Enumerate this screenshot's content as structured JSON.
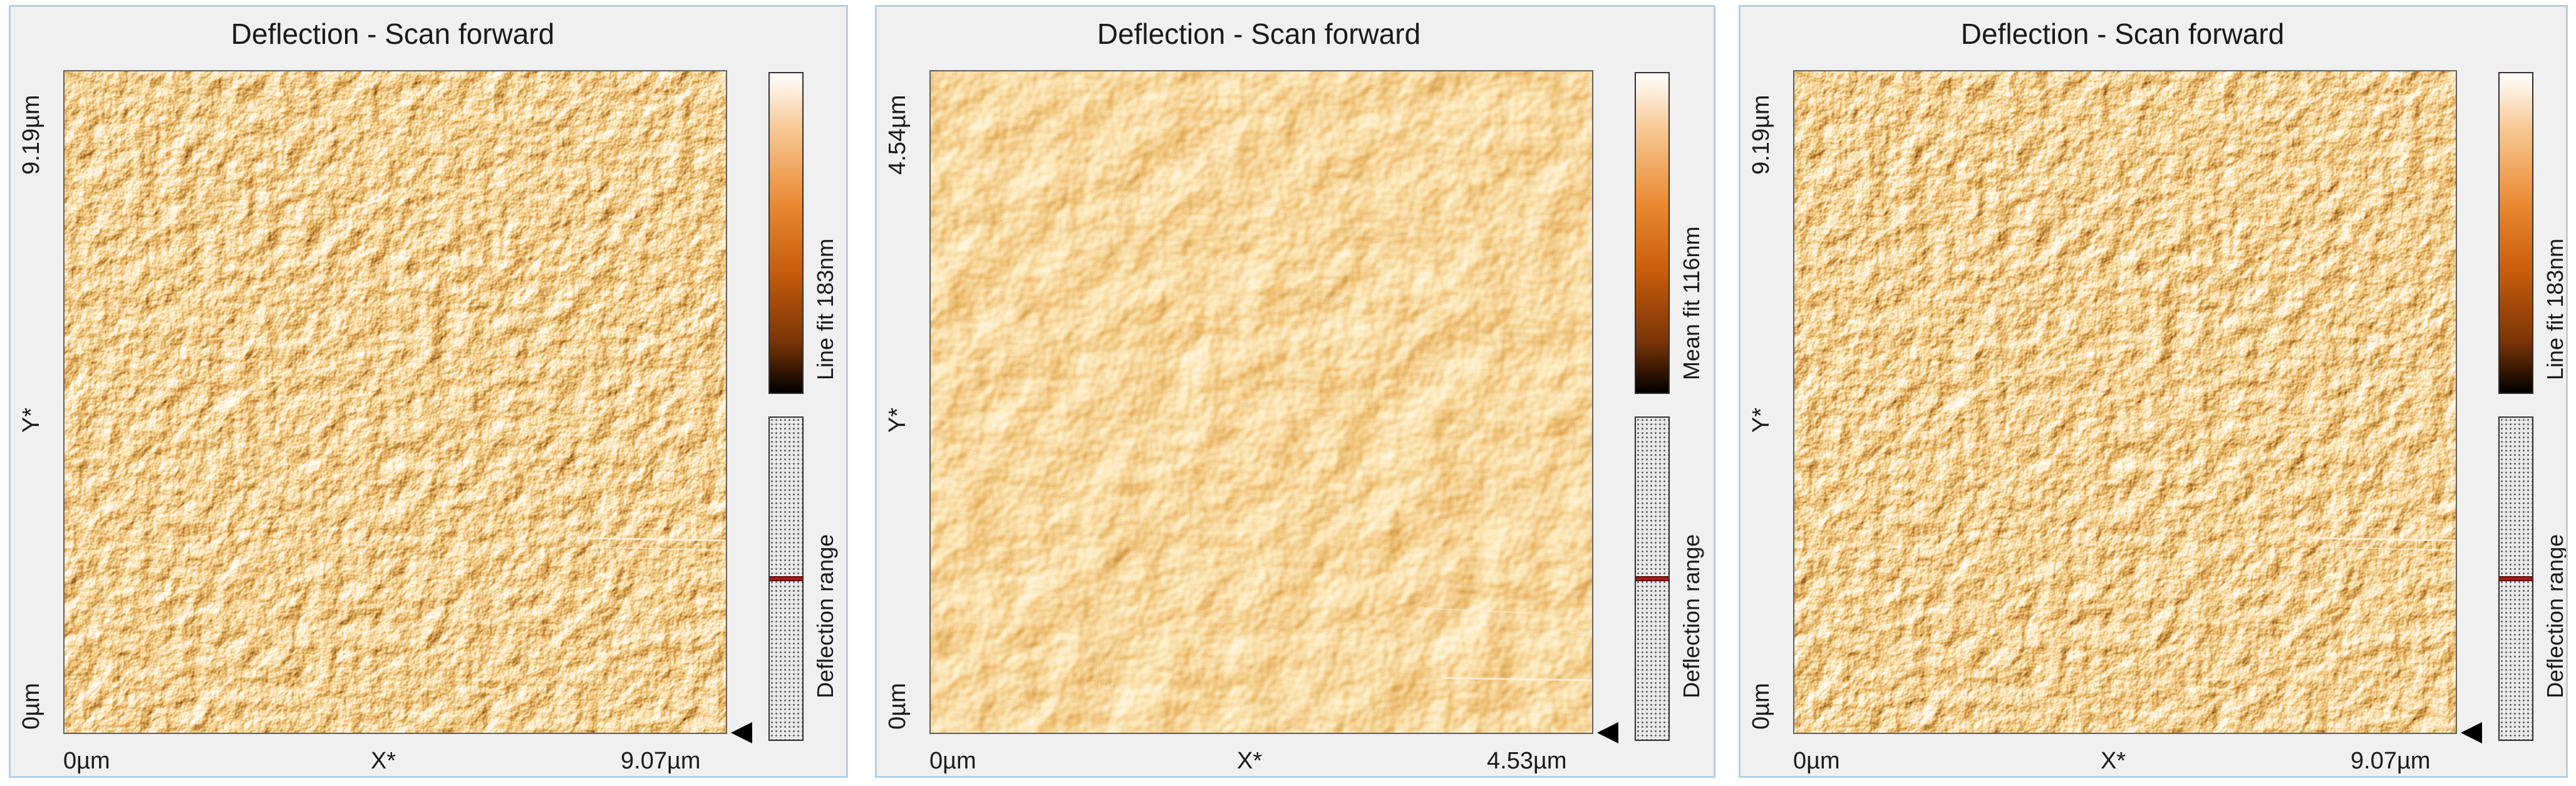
{
  "panels": [
    {
      "title": "Deflection - Scan forward",
      "y_axis": {
        "max_label": "9.19µm",
        "mid_label": "Y*",
        "min_label": "0µm"
      },
      "x_axis": {
        "min_label": "0µm",
        "mid_label": "X*",
        "max_label": "9.07µm"
      },
      "colorbar_label": "Line fit 183nm",
      "range_label": "Deflection range",
      "range_marker_level": 0.5
    },
    {
      "title": "Deflection - Scan forward",
      "y_axis": {
        "max_label": "4.54µm",
        "mid_label": "Y*",
        "min_label": "0µm"
      },
      "x_axis": {
        "min_label": "0µm",
        "mid_label": "X*",
        "max_label": "4.53µm"
      },
      "colorbar_label": "Mean fit 116nm",
      "range_label": "Deflection range",
      "range_marker_level": 0.5
    },
    {
      "title": "Deflection - Scan forward",
      "y_axis": {
        "max_label": "9.19µm",
        "mid_label": "Y*",
        "min_label": "0µm"
      },
      "x_axis": {
        "min_label": "0µm",
        "mid_label": "X*",
        "max_label": "9.07µm"
      },
      "colorbar_label": "Line fit 183nm",
      "range_label": "Deflection range",
      "range_marker_level": 0.5
    }
  ],
  "colors": {
    "panel_border": "#b6cfe1",
    "panel_bg": "#f0f0f0",
    "scan_base": "#d9782a",
    "range_marker": "#b11a1a"
  }
}
